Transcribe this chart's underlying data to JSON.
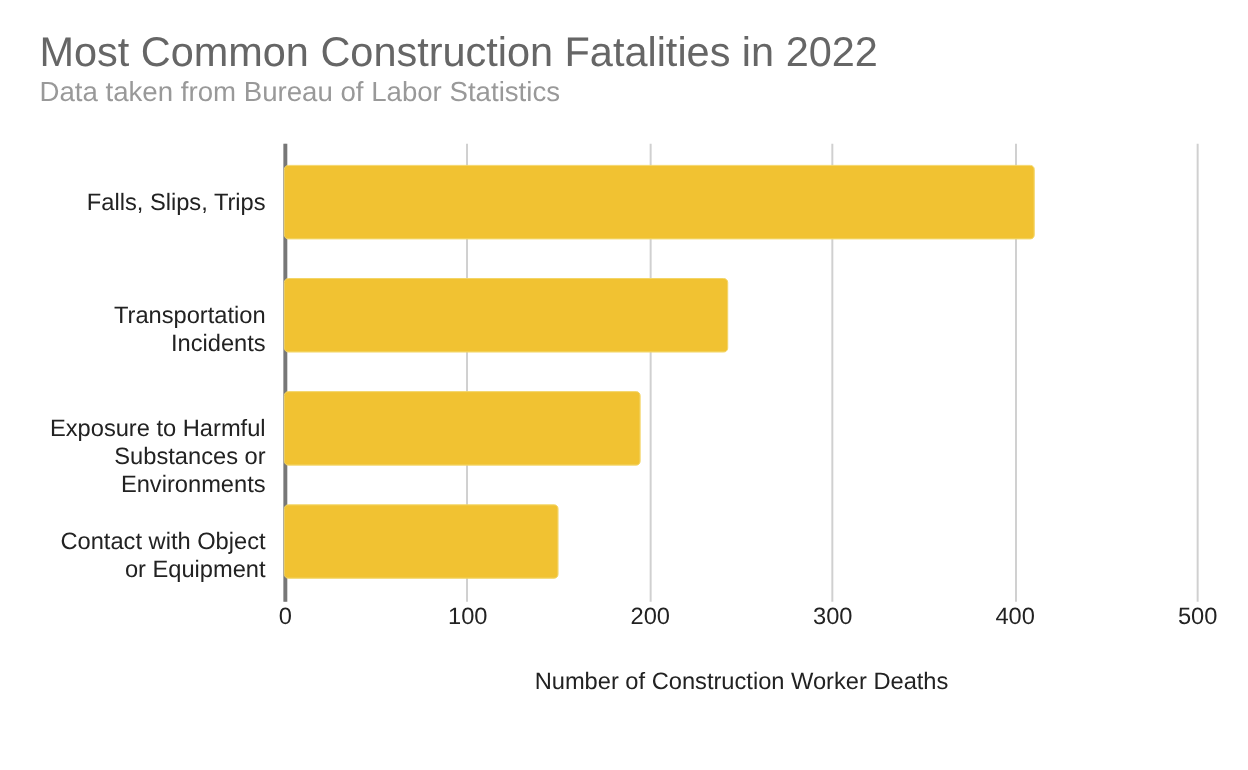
{
  "chart_data": {
    "type": "bar",
    "orientation": "horizontal",
    "title": "Most Common Construction Fatalities in 2022",
    "subtitle": "Data taken from Bureau of Labor Statistics",
    "categories": [
      "Falls, Slips, Trips",
      "Transportation Incidents",
      "Exposure to Harmful Substances or Environments",
      "Contact with Object or Equipment"
    ],
    "values": [
      411,
      243,
      195,
      150
    ],
    "color": "#f1c232",
    "xlabel": "Number of Construction Worker Deaths",
    "xlim": [
      0,
      500
    ],
    "xticks": [
      0,
      100,
      200,
      300,
      400,
      500
    ],
    "grid": "x"
  }
}
